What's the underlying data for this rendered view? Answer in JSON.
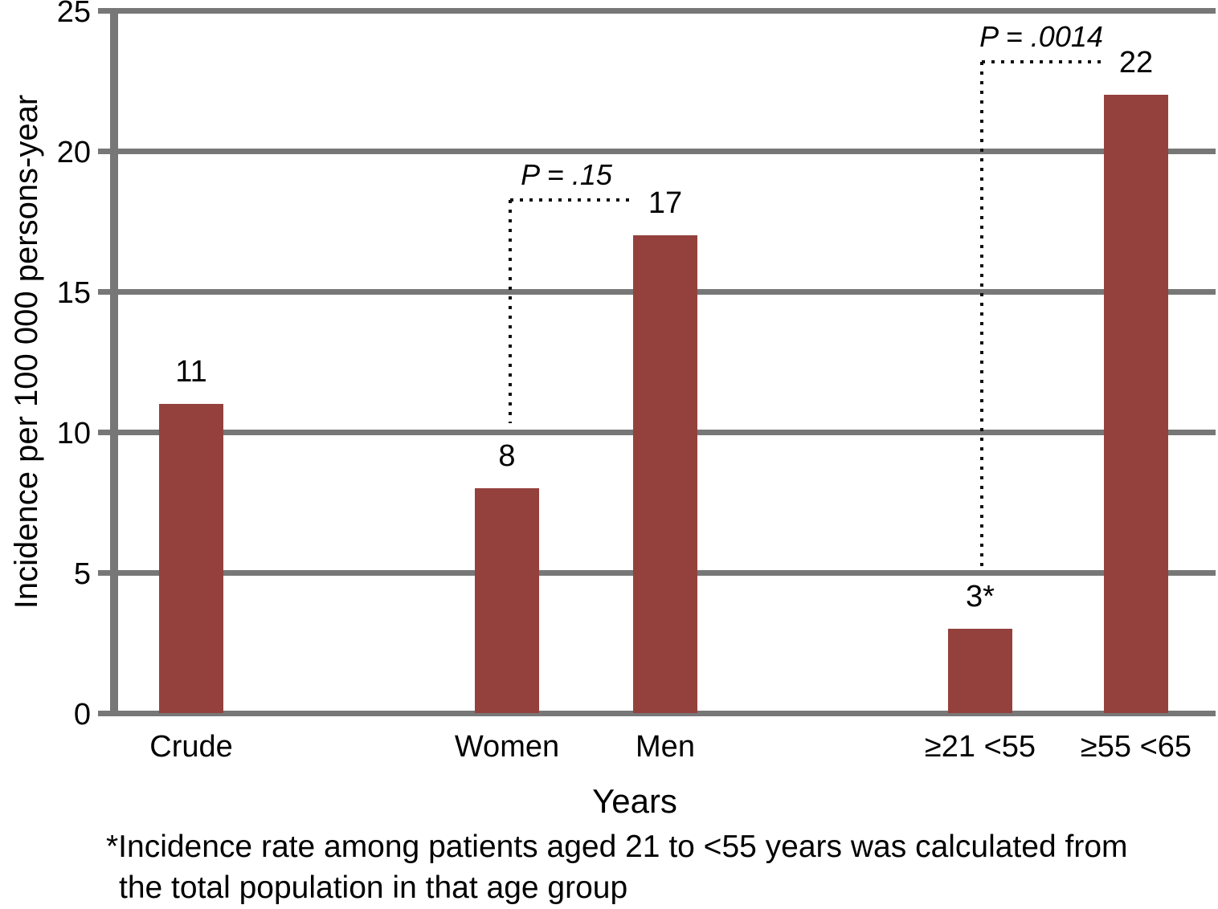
{
  "chart_data": {
    "type": "bar",
    "categories": [
      "Crude",
      "Women",
      "Men",
      "≥21 <55",
      "≥55 <65"
    ],
    "values": [
      11,
      8,
      17,
      3,
      22
    ],
    "bar_labels": [
      "11",
      "8",
      "17",
      "3*",
      "22"
    ],
    "title": "",
    "xlabel": "Years",
    "ylabel": "Incidence per 100 000 persons-year",
    "ylim": [
      0,
      25
    ],
    "yticks": [
      0,
      5,
      10,
      15,
      20,
      25
    ],
    "grid": "horizontal",
    "legend": "none",
    "bar_color": "#94413E",
    "grid_color": "#777777",
    "annotations": [
      {
        "text": "P = .15",
        "between": [
          "Women",
          "Men"
        ]
      },
      {
        "text": "P = .0014",
        "between": [
          "≥21 <55",
          "≥55 <65"
        ]
      }
    ],
    "footnote_line1": "*Incidence rate among patients aged 21 to <55 years was calculated from",
    "footnote_line2": "the total population in that age group"
  }
}
